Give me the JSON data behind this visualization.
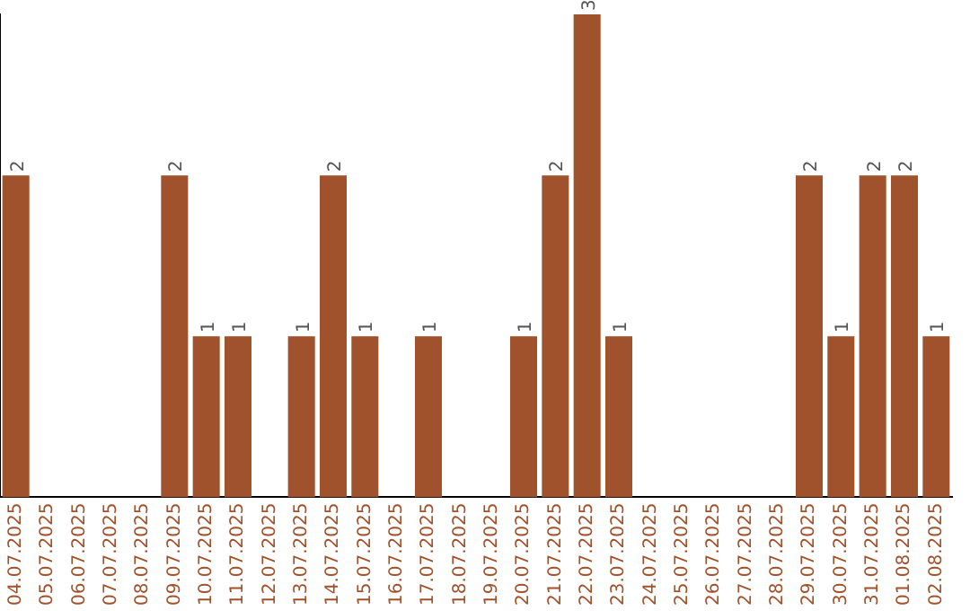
{
  "chart_data": {
    "type": "bar",
    "categories": [
      "04.07.2025",
      "05.07.2025",
      "06.07.2025",
      "07.07.2025",
      "08.07.2025",
      "09.07.2025",
      "10.07.2025",
      "11.07.2025",
      "12.07.2025",
      "13.07.2025",
      "14.07.2025",
      "15.07.2025",
      "16.07.2025",
      "17.07.2025",
      "18.07.2025",
      "19.07.2025",
      "20.07.2025",
      "21.07.2025",
      "22.07.2025",
      "23.07.2025",
      "24.07.2025",
      "25.07.2025",
      "26.07.2025",
      "27.07.2025",
      "28.07.2025",
      "29.07.2025",
      "30.07.2025",
      "31.07.2025",
      "01.08.2025",
      "02.08.2025"
    ],
    "values": [
      2,
      null,
      null,
      null,
      null,
      2,
      1,
      1,
      null,
      1,
      2,
      1,
      null,
      1,
      null,
      null,
      1,
      2,
      3,
      1,
      null,
      null,
      null,
      null,
      null,
      2,
      1,
      2,
      2,
      1
    ],
    "color": "#a0522d",
    "data_labels": true,
    "grid": false,
    "legend": false,
    "tick_labels": "x"
  }
}
